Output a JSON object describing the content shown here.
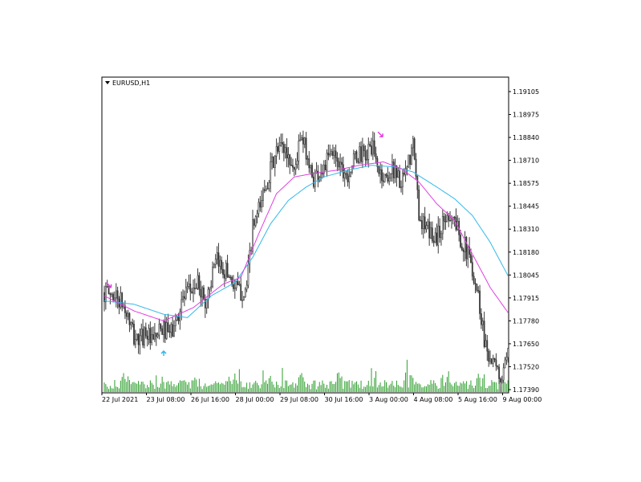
{
  "colors": {
    "background": "#ffffff",
    "frame": "#000000",
    "candle": "#3a3a3a",
    "volume": "#2e9e2e",
    "ma_fast": "#e040e0",
    "ma_slow": "#33b8ea",
    "arrow_sell": "#e040e0",
    "arrow_buy": "#33b8ea"
  },
  "chart_data": {
    "type": "candlestick",
    "title": "EURUSD,H1",
    "ylim": [
      1.1739,
      1.1917
    ],
    "y_ticks": [
      "1.19105",
      "1.18975",
      "1.18840",
      "1.18710",
      "1.18575",
      "1.18445",
      "1.18310",
      "1.18180",
      "1.18045",
      "1.17915",
      "1.17780",
      "1.17650",
      "1.17520",
      "1.17390"
    ],
    "x_ticks": [
      "22 Jul 2021",
      "23 Jul 08:00",
      "26 Jul 16:00",
      "28 Jul 00:00",
      "29 Jul 08:00",
      "30 Jul 16:00",
      "3 Aug 00:00",
      "4 Aug 08:00",
      "5 Aug 16:00",
      "9 Aug 00:00"
    ],
    "close_path": [
      [
        0,
        1.1797
      ],
      [
        4,
        1.1796
      ],
      [
        8,
        1.1795
      ],
      [
        12,
        1.179
      ],
      [
        16,
        1.1782
      ],
      [
        20,
        1.177
      ],
      [
        24,
        1.1768
      ],
      [
        28,
        1.1775
      ],
      [
        32,
        1.1766
      ],
      [
        36,
        1.1772
      ],
      [
        40,
        1.1775
      ],
      [
        44,
        1.1772
      ],
      [
        48,
        1.1778
      ],
      [
        52,
        1.1792
      ],
      [
        56,
        1.1796
      ],
      [
        60,
        1.18
      ],
      [
        64,
        1.1802
      ],
      [
        68,
        1.179
      ],
      [
        72,
        1.1805
      ],
      [
        76,
        1.1815
      ],
      [
        80,
        1.1812
      ],
      [
        84,
        1.1808
      ],
      [
        88,
        1.18
      ],
      [
        92,
        1.1797
      ],
      [
        96,
        1.18
      ],
      [
        100,
        1.1835
      ],
      [
        104,
        1.1845
      ],
      [
        108,
        1.186
      ],
      [
        112,
        1.187
      ],
      [
        116,
        1.188
      ],
      [
        120,
        1.1885
      ],
      [
        124,
        1.1878
      ],
      [
        128,
        1.187
      ],
      [
        132,
        1.1888
      ],
      [
        136,
        1.1882
      ],
      [
        140,
        1.1865
      ],
      [
        144,
        1.1868
      ],
      [
        148,
        1.1872
      ],
      [
        152,
        1.1878
      ],
      [
        156,
        1.188
      ],
      [
        160,
        1.1872
      ],
      [
        164,
        1.1868
      ],
      [
        168,
        1.1875
      ],
      [
        172,
        1.188
      ],
      [
        176,
        1.1878
      ],
      [
        180,
        1.1885
      ],
      [
        184,
        1.1872
      ],
      [
        188,
        1.1865
      ],
      [
        192,
        1.1868
      ],
      [
        196,
        1.1872
      ],
      [
        200,
        1.186
      ],
      [
        204,
        1.187
      ],
      [
        208,
        1.1885
      ],
      [
        212,
        1.1845
      ],
      [
        216,
        1.1835
      ],
      [
        220,
        1.1832
      ],
      [
        224,
        1.183
      ],
      [
        228,
        1.1838
      ],
      [
        232,
        1.1845
      ],
      [
        236,
        1.184
      ],
      [
        240,
        1.183
      ],
      [
        244,
        1.1822
      ],
      [
        248,
        1.1812
      ],
      [
        252,
        1.1795
      ],
      [
        256,
        1.177
      ],
      [
        260,
        1.1758
      ],
      [
        264,
        1.175
      ],
      [
        268,
        1.1745
      ],
      [
        272,
        1.1758
      ]
    ],
    "ma_fast_path": [
      [
        0,
        1.1795
      ],
      [
        20,
        1.1786
      ],
      [
        40,
        1.178
      ],
      [
        60,
        1.1788
      ],
      [
        80,
        1.1802
      ],
      [
        92,
        1.1806
      ],
      [
        104,
        1.1832
      ],
      [
        116,
        1.1856
      ],
      [
        128,
        1.1866
      ],
      [
        140,
        1.1868
      ],
      [
        156,
        1.187
      ],
      [
        172,
        1.1873
      ],
      [
        188,
        1.1875
      ],
      [
        200,
        1.1871
      ],
      [
        212,
        1.1863
      ],
      [
        224,
        1.185
      ],
      [
        236,
        1.184
      ],
      [
        248,
        1.182
      ],
      [
        260,
        1.18
      ],
      [
        272,
        1.1785
      ]
    ],
    "ma_slow_path": [
      [
        0,
        1.1792
      ],
      [
        20,
        1.179
      ],
      [
        40,
        1.1784
      ],
      [
        56,
        1.1782
      ],
      [
        72,
        1.1795
      ],
      [
        88,
        1.1803
      ],
      [
        100,
        1.1818
      ],
      [
        112,
        1.1838
      ],
      [
        124,
        1.1852
      ],
      [
        136,
        1.186
      ],
      [
        148,
        1.1866
      ],
      [
        164,
        1.187
      ],
      [
        180,
        1.1873
      ],
      [
        196,
        1.1872
      ],
      [
        208,
        1.1869
      ],
      [
        224,
        1.186
      ],
      [
        236,
        1.1853
      ],
      [
        248,
        1.1843
      ],
      [
        260,
        1.1827
      ],
      [
        272,
        1.1807
      ]
    ],
    "signals": [
      {
        "type": "sell",
        "bar": 3,
        "price": 1.18
      },
      {
        "type": "buy",
        "bar": 40,
        "price": 1.1762
      },
      {
        "type": "sell",
        "bar": 186,
        "price": 1.189
      }
    ],
    "volume_max": 60
  }
}
